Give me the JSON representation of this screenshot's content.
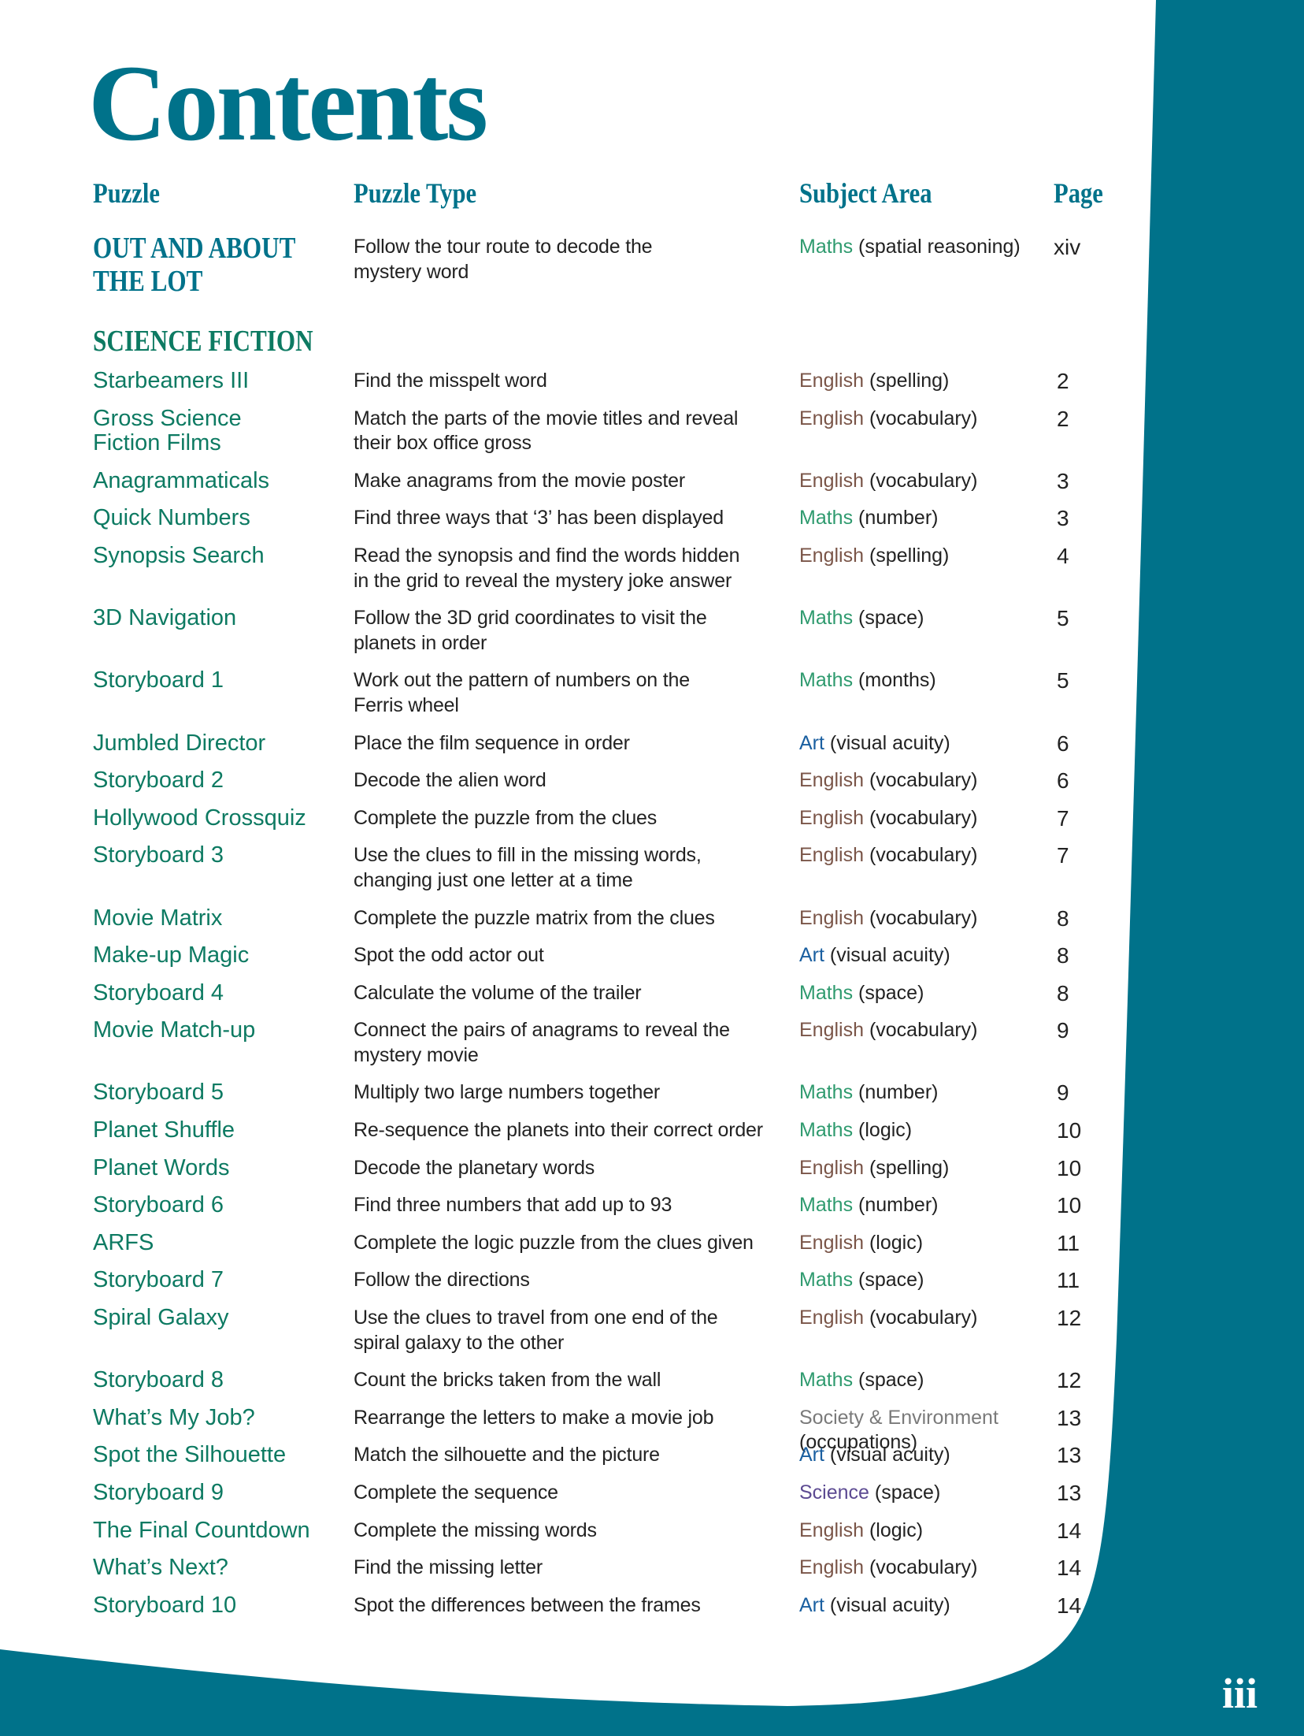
{
  "title": "Contents",
  "headers": {
    "puzzle": "Puzzle",
    "type": "Puzzle Type",
    "subject": "Subject Area",
    "page": "Page"
  },
  "colors": {
    "teal": "#00728a",
    "green": "#0d7a62",
    "Maths": "#2e9a6e",
    "English": "#7a5548",
    "Art": "#1a5fa0",
    "Science": "#5c4a92",
    "Society & Environment": "#7a7a7a"
  },
  "intro": {
    "name": "OUT AND ABOUT\nTHE LOT",
    "type": "Follow the tour route to decode the\nmystery word",
    "subject": "Maths",
    "detail": "(spatial reasoning)",
    "page": "xiv"
  },
  "section": "SCIENCE FICTION",
  "rows": [
    {
      "name": "Starbeamers III",
      "type": "Find the misspelt word",
      "subject": "English",
      "detail": "(spelling)",
      "page": "2"
    },
    {
      "name": "Gross Science\nFiction Films",
      "type": "Match the parts of the movie titles and reveal\ntheir box office gross",
      "subject": "English",
      "detail": "(vocabulary)",
      "page": "2"
    },
    {
      "name": "Anagrammaticals",
      "type": "Make anagrams from the movie poster",
      "subject": "English",
      "detail": "(vocabulary)",
      "page": "3"
    },
    {
      "name": "Quick Numbers",
      "type": "Find three ways that ‘3’ has been displayed",
      "subject": "Maths",
      "detail": "(number)",
      "page": "3"
    },
    {
      "name": "Synopsis Search",
      "type": "Read the synopsis and find the words hidden\nin the grid to reveal the mystery joke answer",
      "subject": "English",
      "detail": "(spelling)",
      "page": "4"
    },
    {
      "name": "3D Navigation",
      "type": "Follow the 3D grid coordinates to visit the\nplanets in order",
      "subject": "Maths",
      "detail": "(space)",
      "page": "5"
    },
    {
      "name": "Storyboard 1",
      "type": "Work out the pattern of numbers on the\nFerris wheel",
      "subject": "Maths",
      "detail": "(months)",
      "page": "5"
    },
    {
      "name": "Jumbled Director",
      "type": "Place the film sequence in order",
      "subject": "Art",
      "detail": "(visual acuity)",
      "page": "6"
    },
    {
      "name": "Storyboard 2",
      "type": "Decode the alien word",
      "subject": "English",
      "detail": "(vocabulary)",
      "page": "6"
    },
    {
      "name": "Hollywood Crossquiz",
      "type": "Complete the puzzle from the clues",
      "subject": "English",
      "detail": "(vocabulary)",
      "page": "7"
    },
    {
      "name": "Storyboard 3",
      "type": "Use the clues to fill in the missing words,\nchanging just one letter at a time",
      "subject": "English",
      "detail": "(vocabulary)",
      "page": "7"
    },
    {
      "name": "Movie Matrix",
      "type": "Complete the puzzle matrix from the clues",
      "subject": "English",
      "detail": "(vocabulary)",
      "page": "8"
    },
    {
      "name": "Make-up Magic",
      "type": "Spot the odd actor out",
      "subject": "Art",
      "detail": "(visual acuity)",
      "page": "8"
    },
    {
      "name": "Storyboard 4",
      "type": "Calculate the volume of the trailer",
      "subject": "Maths",
      "detail": "(space)",
      "page": "8"
    },
    {
      "name": "Movie Match-up",
      "type": "Connect the pairs of anagrams to reveal the\nmystery movie",
      "subject": "English",
      "detail": "(vocabulary)",
      "page": "9"
    },
    {
      "name": "Storyboard 5",
      "type": "Multiply two large numbers together",
      "subject": "Maths",
      "detail": "(number)",
      "page": "9"
    },
    {
      "name": "Planet Shuffle",
      "type": "Re-sequence the planets into their correct order",
      "subject": "Maths",
      "detail": "(logic)",
      "page": "10"
    },
    {
      "name": "Planet Words",
      "type": "Decode the planetary words",
      "subject": "English",
      "detail": "(spelling)",
      "page": "10"
    },
    {
      "name": "Storyboard 6",
      "type": "Find three numbers that add up to 93",
      "subject": "Maths",
      "detail": "(number)",
      "page": "10"
    },
    {
      "name": "ARFS",
      "type": "Complete the logic puzzle from the clues given",
      "subject": "English",
      "detail": "(logic)",
      "page": "11"
    },
    {
      "name": "Storyboard 7",
      "type": "Follow the directions",
      "subject": "Maths",
      "detail": "(space)",
      "page": "11"
    },
    {
      "name": "Spiral Galaxy",
      "type": "Use the clues to travel from one end of the\nspiral galaxy to the other",
      "subject": "English",
      "detail": "(vocabulary)",
      "page": "12"
    },
    {
      "name": "Storyboard 8",
      "type": "Count the bricks taken from the wall",
      "subject": "Maths",
      "detail": "(space)",
      "page": "12"
    },
    {
      "name": "What’s My Job?",
      "type": "Rearrange the letters to make a movie job",
      "subject": "Society & Environment",
      "detail": "\n(occupations)",
      "page": "13"
    },
    {
      "name": "Spot the Silhouette",
      "type": "Match the silhouette and the picture",
      "subject": "Art",
      "detail": "(visual acuity)",
      "page": "13"
    },
    {
      "name": "Storyboard 9",
      "type": "Complete the sequence",
      "subject": "Science",
      "detail": "(space)",
      "page": "13"
    },
    {
      "name": "The Final Countdown",
      "type": "Complete the missing words",
      "subject": "English",
      "detail": "(logic)",
      "page": "14"
    },
    {
      "name": "What’s Next?",
      "type": "Find the missing letter",
      "subject": "English",
      "detail": "(vocabulary)",
      "page": "14"
    },
    {
      "name": "Storyboard 10",
      "type": "Spot the differences between the frames",
      "subject": "Art",
      "detail": "(visual acuity)",
      "page": "14"
    }
  ],
  "page_number": "iii"
}
